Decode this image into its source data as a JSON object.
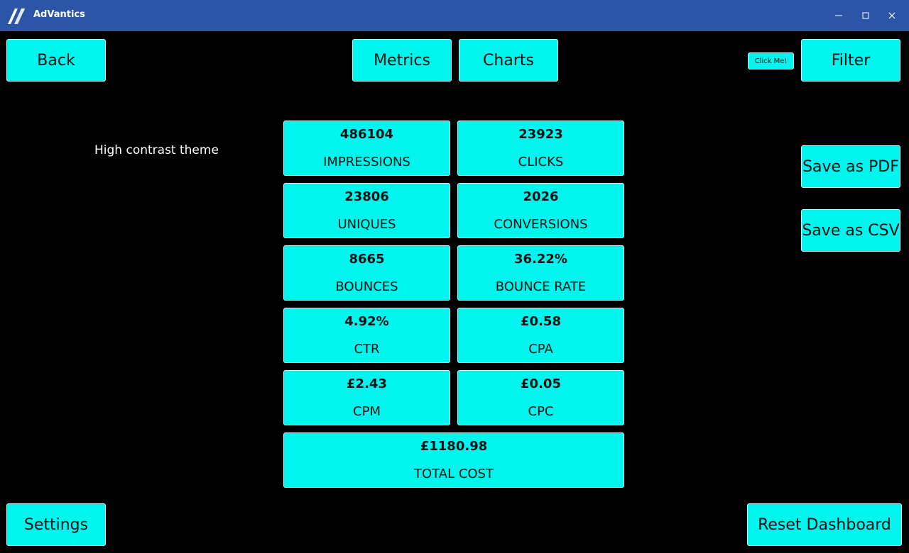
{
  "titlebar": {
    "title": "AdVantics",
    "logo_icon": "advantics-logo-icon",
    "controls": [
      "minimize-icon",
      "maximize-icon",
      "close-icon"
    ]
  },
  "nav": {
    "back": "Back",
    "metrics": "Metrics",
    "charts": "Charts",
    "click_me": "Click Me!",
    "filter": "Filter"
  },
  "side_actions": {
    "save_pdf": "Save as PDF",
    "save_csv": "Save as CSV"
  },
  "theme_label": "High contrast theme",
  "metrics": {
    "impressions": {
      "value": "486104",
      "label": "IMPRESSIONS"
    },
    "clicks": {
      "value": "23923",
      "label": "CLICKS"
    },
    "uniques": {
      "value": "23806",
      "label": "UNIQUES"
    },
    "conversions": {
      "value": "2026",
      "label": "CONVERSIONS"
    },
    "bounces": {
      "value": "8665",
      "label": "BOUNCES"
    },
    "bounce_rate": {
      "value": "36.22%",
      "label": "BOUNCE RATE"
    },
    "ctr": {
      "value": "4.92%",
      "label": "CTR"
    },
    "cpa": {
      "value": "£0.58",
      "label": "CPA"
    },
    "cpm": {
      "value": "£2.43",
      "label": "CPM"
    },
    "cpc": {
      "value": "£0.05",
      "label": "CPC"
    },
    "total_cost": {
      "value": "£1180.98",
      "label": "TOTAL COST"
    }
  },
  "footer": {
    "settings": "Settings",
    "reset": "Reset Dashboard"
  },
  "colors": {
    "titlebar": "#2d55a7",
    "background": "#000000",
    "accent": "#00f5ef",
    "text_on_accent": "#111111",
    "text_on_dark": "#ffffff"
  }
}
